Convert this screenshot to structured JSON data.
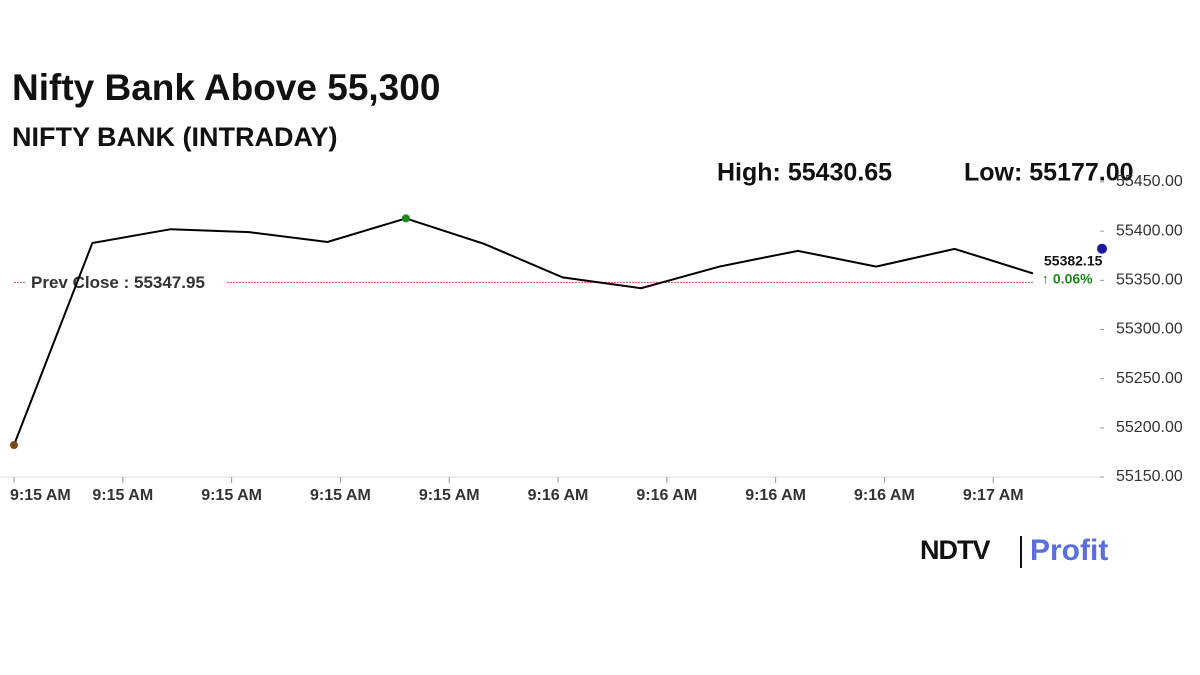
{
  "chart_data": {
    "type": "line",
    "title": "Nifty Bank Above 55,300",
    "subtitle": "NIFTY BANK (INTRADAY)",
    "high_label": "High: 55430.65",
    "low_label": "Low: 55177.00",
    "values": [
      55182.5,
      55388,
      55402,
      55399,
      55389,
      55413,
      55387,
      55353,
      55342,
      55364,
      55380,
      55364,
      55382,
      55357
    ],
    "color": "#000000",
    "xtick_labels": [
      "9:15 AM",
      "9:15 AM",
      "9:15 AM",
      "9:15 AM",
      "9:15 AM",
      "9:16 AM",
      "9:16 AM",
      "9:16 AM",
      "9:16 AM",
      "9:17 AM"
    ],
    "ylim": [
      55150,
      55450
    ],
    "yticks": [
      {
        "value": 55150,
        "label": "55150.00"
      },
      {
        "value": 55200,
        "label": "55200.00"
      },
      {
        "value": 55250,
        "label": "55250.00"
      },
      {
        "value": 55300,
        "label": "55300.00"
      },
      {
        "value": 55350,
        "label": "55350.00"
      },
      {
        "value": 55400,
        "label": "55400.00"
      },
      {
        "value": 55450,
        "label": "55450.00"
      }
    ],
    "prev_close": {
      "value": 55347.95,
      "label": "Prev Close : 55347.95",
      "color": "#e05050"
    },
    "last": {
      "value": 55382.15,
      "change_label": "↑ 0.06%",
      "color": "#1a1aa0",
      "change_color": "#1a8a1a"
    },
    "start_color": "#7a4a1a",
    "high_color": "#1a8a1a",
    "logo": [
      "NDTV",
      "Profit"
    ]
  }
}
